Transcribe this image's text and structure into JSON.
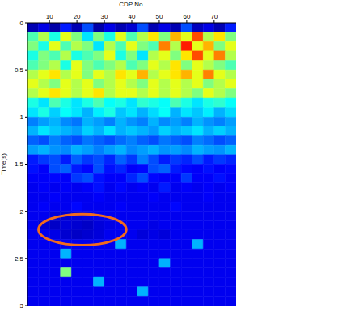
{
  "chart_data": {
    "type": "heatmap",
    "x_label": "CDP No.",
    "y_label": "Time(s)",
    "xlim": [
      2,
      78
    ],
    "xticks": [
      10,
      20,
      30,
      40,
      50,
      60,
      70
    ],
    "ylim": [
      0,
      3
    ],
    "yticks": [
      0,
      0.5,
      1,
      1.5,
      2,
      2.5,
      3
    ],
    "zlim": [
      0,
      1
    ],
    "xbins": [
      2,
      6,
      10,
      14,
      18,
      22,
      26,
      30,
      34,
      38,
      42,
      46,
      50,
      54,
      58,
      62,
      66,
      70,
      74,
      78
    ],
    "ybins": [
      0,
      0.1,
      0.2,
      0.3,
      0.4,
      0.5,
      0.6,
      0.7,
      0.8,
      0.9,
      1,
      1.1,
      1.2,
      1.3,
      1.4,
      1.5,
      1.6,
      1.7,
      1.8,
      1.9,
      2,
      2.1,
      2.2,
      2.3,
      2.4,
      2.5,
      2.6,
      2.7,
      2.8,
      2.9,
      3
    ],
    "cells": [
      [
        0.05,
        0.1,
        0.04,
        0.15,
        0.05,
        0.2,
        0.04,
        0.1,
        0.05,
        0.08,
        0.2,
        0.05,
        0.1,
        0.05,
        0.2,
        0.06,
        0.1,
        0.05,
        0.15
      ],
      [
        0.45,
        0.55,
        0.4,
        0.6,
        0.5,
        0.35,
        0.5,
        0.4,
        0.6,
        0.45,
        0.55,
        0.65,
        0.5,
        0.7,
        0.6,
        0.8,
        0.55,
        0.65,
        0.5
      ],
      [
        0.5,
        0.4,
        0.6,
        0.45,
        0.55,
        0.5,
        0.35,
        0.55,
        0.45,
        0.6,
        0.5,
        0.45,
        0.75,
        0.55,
        0.85,
        0.6,
        0.7,
        0.5,
        0.6
      ],
      [
        0.4,
        0.5,
        0.45,
        0.55,
        0.4,
        0.45,
        0.5,
        0.6,
        0.4,
        0.5,
        0.35,
        0.55,
        0.6,
        0.5,
        0.65,
        0.8,
        0.6,
        0.75,
        0.55
      ],
      [
        0.45,
        0.5,
        0.55,
        0.4,
        0.6,
        0.5,
        0.45,
        0.5,
        0.55,
        0.45,
        0.5,
        0.6,
        0.55,
        0.65,
        0.5,
        0.6,
        0.55,
        0.5,
        0.45
      ],
      [
        0.55,
        0.6,
        0.65,
        0.55,
        0.6,
        0.5,
        0.6,
        0.55,
        0.65,
        0.6,
        0.7,
        0.55,
        0.6,
        0.65,
        0.7,
        0.6,
        0.75,
        0.6,
        0.55
      ],
      [
        0.6,
        0.55,
        0.5,
        0.6,
        0.55,
        0.6,
        0.5,
        0.55,
        0.6,
        0.55,
        0.5,
        0.6,
        0.55,
        0.6,
        0.55,
        0.6,
        0.5,
        0.55,
        0.6
      ],
      [
        0.55,
        0.6,
        0.65,
        0.6,
        0.55,
        0.6,
        0.65,
        0.55,
        0.6,
        0.6,
        0.55,
        0.6,
        0.55,
        0.6,
        0.55,
        0.5,
        0.6,
        0.55,
        0.5
      ],
      [
        0.4,
        0.35,
        0.45,
        0.4,
        0.35,
        0.4,
        0.45,
        0.38,
        0.4,
        0.35,
        0.42,
        0.4,
        0.38,
        0.45,
        0.4,
        0.35,
        0.4,
        0.42,
        0.38
      ],
      [
        0.35,
        0.4,
        0.33,
        0.38,
        0.35,
        0.3,
        0.36,
        0.4,
        0.32,
        0.35,
        0.3,
        0.34,
        0.38,
        0.3,
        0.35,
        0.32,
        0.36,
        0.3,
        0.34
      ],
      [
        0.25,
        0.28,
        0.3,
        0.26,
        0.24,
        0.3,
        0.28,
        0.25,
        0.3,
        0.27,
        0.25,
        0.3,
        0.26,
        0.28,
        0.25,
        0.3,
        0.27,
        0.25,
        0.28
      ],
      [
        0.3,
        0.35,
        0.32,
        0.3,
        0.28,
        0.33,
        0.3,
        0.35,
        0.3,
        0.32,
        0.3,
        0.28,
        0.33,
        0.3,
        0.32,
        0.35,
        0.3,
        0.33,
        0.3
      ],
      [
        0.22,
        0.2,
        0.25,
        0.22,
        0.2,
        0.24,
        0.22,
        0.2,
        0.23,
        0.25,
        0.22,
        0.2,
        0.24,
        0.22,
        0.2,
        0.25,
        0.23,
        0.2,
        0.22
      ],
      [
        0.28,
        0.3,
        0.27,
        0.26,
        0.3,
        0.28,
        0.25,
        0.28,
        0.3,
        0.26,
        0.28,
        0.3,
        0.27,
        0.28,
        0.26,
        0.3,
        0.28,
        0.27,
        0.3
      ],
      [
        0.15,
        0.18,
        0.2,
        0.15,
        0.22,
        0.18,
        0.2,
        0.16,
        0.22,
        0.18,
        0.25,
        0.2,
        0.15,
        0.18,
        0.16,
        0.2,
        0.15,
        0.18,
        0.16
      ],
      [
        0.14,
        0.12,
        0.2,
        0.22,
        0.15,
        0.13,
        0.2,
        0.14,
        0.16,
        0.12,
        0.13,
        0.2,
        0.22,
        0.15,
        0.13,
        0.12,
        0.14,
        0.12,
        0.13
      ],
      [
        0.12,
        0.12,
        0.13,
        0.12,
        0.18,
        0.2,
        0.14,
        0.12,
        0.12,
        0.16,
        0.2,
        0.13,
        0.12,
        0.12,
        0.18,
        0.12,
        0.12,
        0.14,
        0.12
      ],
      [
        0.11,
        0.12,
        0.11,
        0.12,
        0.11,
        0.12,
        0.14,
        0.11,
        0.13,
        0.11,
        0.12,
        0.11,
        0.15,
        0.11,
        0.12,
        0.11,
        0.12,
        0.11,
        0.12
      ],
      [
        0.11,
        0.11,
        0.12,
        0.11,
        0.11,
        0.11,
        0.12,
        0.11,
        0.11,
        0.11,
        0.11,
        0.12,
        0.11,
        0.11,
        0.11,
        0.11,
        0.12,
        0.11,
        0.11
      ],
      [
        0.11,
        0.12,
        0.11,
        0.11,
        0.13,
        0.11,
        0.11,
        0.11,
        0.12,
        0.11,
        0.11,
        0.11,
        0.11,
        0.13,
        0.11,
        0.11,
        0.11,
        0.11,
        0.11
      ],
      [
        0.11,
        0.11,
        0.09,
        0.08,
        0.09,
        0.1,
        0.11,
        0.11,
        0.11,
        0.11,
        0.11,
        0.11,
        0.11,
        0.11,
        0.11,
        0.11,
        0.11,
        0.11,
        0.11
      ],
      [
        0.11,
        0.08,
        0.07,
        0.09,
        0.08,
        0.07,
        0.09,
        0.1,
        0.11,
        0.11,
        0.11,
        0.1,
        0.11,
        0.11,
        0.11,
        0.11,
        0.11,
        0.11,
        0.11
      ],
      [
        0.11,
        0.11,
        0.1,
        0.08,
        0.07,
        0.08,
        0.09,
        0.11,
        0.11,
        0.11,
        0.09,
        0.1,
        0.09,
        0.11,
        0.11,
        0.11,
        0.11,
        0.11,
        0.11
      ],
      [
        0.11,
        0.11,
        0.11,
        0.11,
        0.11,
        0.11,
        0.11,
        0.11,
        0.3,
        0.11,
        0.11,
        0.11,
        0.11,
        0.11,
        0.11,
        0.3,
        0.11,
        0.11,
        0.11
      ],
      [
        0.11,
        0.11,
        0.11,
        0.3,
        0.11,
        0.11,
        0.11,
        0.11,
        0.11,
        0.11,
        0.11,
        0.11,
        0.11,
        0.11,
        0.11,
        0.11,
        0.11,
        0.11,
        0.11
      ],
      [
        0.11,
        0.11,
        0.11,
        0.11,
        0.11,
        0.11,
        0.11,
        0.11,
        0.11,
        0.11,
        0.11,
        0.11,
        0.3,
        0.11,
        0.11,
        0.11,
        0.11,
        0.11,
        0.11
      ],
      [
        0.11,
        0.11,
        0.11,
        0.5,
        0.11,
        0.11,
        0.11,
        0.11,
        0.11,
        0.11,
        0.11,
        0.11,
        0.11,
        0.11,
        0.11,
        0.11,
        0.11,
        0.11,
        0.11
      ],
      [
        0.11,
        0.11,
        0.11,
        0.11,
        0.11,
        0.11,
        0.3,
        0.11,
        0.11,
        0.11,
        0.11,
        0.11,
        0.11,
        0.11,
        0.11,
        0.11,
        0.11,
        0.11,
        0.11
      ],
      [
        0.11,
        0.11,
        0.11,
        0.11,
        0.11,
        0.11,
        0.11,
        0.11,
        0.11,
        0.11,
        0.3,
        0.11,
        0.11,
        0.11,
        0.11,
        0.11,
        0.11,
        0.11,
        0.11
      ],
      [
        0.11,
        0.11,
        0.11,
        0.11,
        0.11,
        0.11,
        0.11,
        0.11,
        0.11,
        0.11,
        0.11,
        0.11,
        0.11,
        0.11,
        0.11,
        0.11,
        0.11,
        0.11,
        0.11
      ]
    ]
  }
}
